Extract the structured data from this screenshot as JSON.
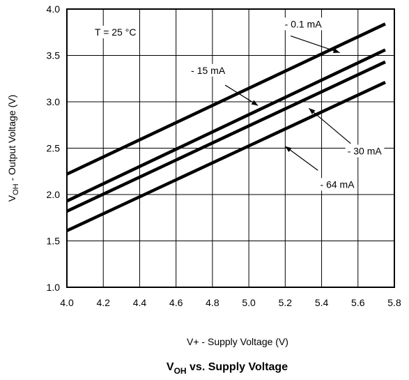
{
  "chart_data": {
    "type": "line",
    "title": {
      "main": "V",
      "sub": "OH",
      "rest": " vs. Supply Voltage"
    },
    "xlabel": "V+  -  Supply Voltage (V)",
    "ylabel": {
      "main": "V",
      "sub": "OH",
      "rest": "  -  Output Voltage (V)"
    },
    "xlim": [
      4.0,
      5.8
    ],
    "ylim": [
      1.0,
      4.0
    ],
    "xticks": [
      "4.0",
      "4.2",
      "4.4",
      "4.6",
      "4.8",
      "5.0",
      "5.2",
      "5.4",
      "5.6",
      "5.8"
    ],
    "yticks": [
      "1.0",
      "1.5",
      "2.0",
      "2.5",
      "3.0",
      "3.5",
      "4.0"
    ],
    "grid": true,
    "condition_label": "T = 25 °C",
    "series": [
      {
        "name": "- 0.1 mA",
        "x": [
          4.0,
          5.75
        ],
        "y": [
          2.22,
          3.84
        ]
      },
      {
        "name": "- 15 mA",
        "x": [
          4.0,
          5.75
        ],
        "y": [
          1.93,
          3.56
        ]
      },
      {
        "name": "- 30 mA",
        "x": [
          4.0,
          5.75
        ],
        "y": [
          1.82,
          3.43
        ]
      },
      {
        "name": "- 64 mA",
        "x": [
          4.0,
          5.75
        ],
        "y": [
          1.61,
          3.21
        ]
      }
    ],
    "annotations": [
      {
        "series": 0,
        "text": "- 0.1 mA",
        "label_at": [
          5.4,
          3.84
        ],
        "anchor": "end",
        "arrow_from": [
          5.23,
          3.71
        ],
        "arrow_to": [
          5.5,
          3.53
        ]
      },
      {
        "series": 1,
        "text": "- 15 mA",
        "label_at": [
          4.87,
          3.34
        ],
        "anchor": "end",
        "arrow_from": [
          4.87,
          3.18
        ],
        "arrow_to": [
          5.05,
          2.96
        ]
      },
      {
        "series": 2,
        "text": "- 30 mA",
        "label_at": [
          5.73,
          2.47
        ],
        "anchor": "end",
        "arrow_from": [
          5.56,
          2.55
        ],
        "arrow_to": [
          5.33,
          2.93
        ]
      },
      {
        "series": 3,
        "text": "- 64 mA",
        "label_at": [
          5.58,
          2.11
        ],
        "anchor": "end",
        "arrow_from": [
          5.38,
          2.26
        ],
        "arrow_to": [
          5.2,
          2.52
        ]
      }
    ]
  }
}
